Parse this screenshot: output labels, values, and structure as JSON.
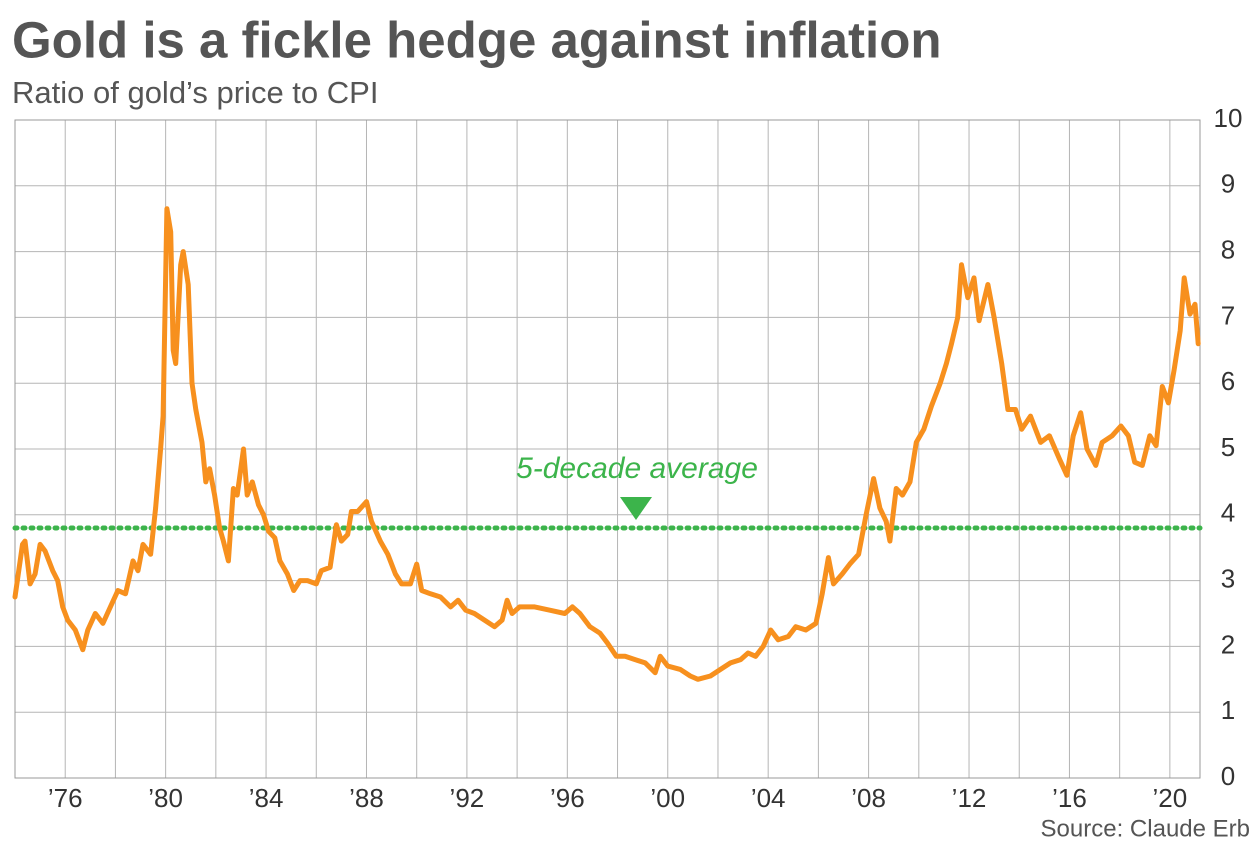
{
  "chart_data": {
    "type": "line",
    "title": "Gold is a fickle hedge against inflation",
    "subtitle": "Ratio of gold’s price to CPI",
    "source": "Source: Claude Erb",
    "color": "#f7901e",
    "x": [
      1974.0,
      1974.3,
      1974.4,
      1974.6,
      1974.8,
      1975.0,
      1975.2,
      1975.5,
      1975.7,
      1975.9,
      1976.1,
      1976.4,
      1976.7,
      1976.9,
      1977.2,
      1977.5,
      1977.8,
      1978.1,
      1978.4,
      1978.7,
      1978.9,
      1979.1,
      1979.4,
      1979.6,
      1979.8,
      1979.9,
      1980.05,
      1980.2,
      1980.3,
      1980.4,
      1980.6,
      1980.7,
      1980.9,
      1981.05,
      1981.2,
      1981.45,
      1981.6,
      1981.75,
      1981.95,
      1982.15,
      1982.3,
      1982.5,
      1982.7,
      1982.85,
      1983.1,
      1983.25,
      1983.45,
      1983.7,
      1983.9,
      1984.1,
      1984.35,
      1984.55,
      1984.85,
      1985.1,
      1985.35,
      1985.65,
      1986.0,
      1986.2,
      1986.55,
      1986.8,
      1987.0,
      1987.25,
      1987.4,
      1987.65,
      1988.0,
      1988.2,
      1988.55,
      1988.85,
      1989.15,
      1989.4,
      1989.75,
      1990.0,
      1990.2,
      1990.55,
      1990.95,
      1991.35,
      1991.65,
      1991.95,
      1992.3,
      1992.7,
      1993.1,
      1993.4,
      1993.6,
      1993.8,
      1994.1,
      1994.7,
      1995.3,
      1995.9,
      1996.2,
      1996.5,
      1996.9,
      1997.3,
      1997.6,
      1997.95,
      1998.3,
      1998.7,
      1999.1,
      1999.5,
      1999.7,
      2000.0,
      2000.5,
      2000.9,
      2001.2,
      2001.7,
      2002.1,
      2002.5,
      2002.9,
      2003.2,
      2003.5,
      2003.8,
      2004.1,
      2004.4,
      2004.8,
      2005.1,
      2005.5,
      2005.9,
      2006.15,
      2006.4,
      2006.6,
      2006.95,
      2007.25,
      2007.6,
      2007.9,
      2008.2,
      2008.45,
      2008.7,
      2008.85,
      2009.1,
      2009.35,
      2009.65,
      2009.9,
      2010.2,
      2010.5,
      2010.85,
      2011.1,
      2011.3,
      2011.55,
      2011.7,
      2011.95,
      2012.2,
      2012.4,
      2012.75,
      2013.0,
      2013.3,
      2013.55,
      2013.85,
      2014.1,
      2014.45,
      2014.85,
      2015.2,
      2015.6,
      2015.9,
      2016.15,
      2016.45,
      2016.7,
      2017.05,
      2017.3,
      2017.7,
      2018.05,
      2018.35,
      2018.6,
      2018.9,
      2019.2,
      2019.45,
      2019.7,
      2019.94,
      2020.17,
      2020.41,
      2020.57,
      2020.8,
      2021.0,
      2021.13
    ],
    "values": [
      2.75,
      3.55,
      3.6,
      2.95,
      3.1,
      3.55,
      3.45,
      3.15,
      3.0,
      2.6,
      2.4,
      2.25,
      1.95,
      2.25,
      2.5,
      2.35,
      2.6,
      2.85,
      2.8,
      3.3,
      3.15,
      3.55,
      3.4,
      4.1,
      5.0,
      5.5,
      8.65,
      8.3,
      6.5,
      6.3,
      7.8,
      8.0,
      7.5,
      6.0,
      5.6,
      5.1,
      4.5,
      4.7,
      4.3,
      3.8,
      3.6,
      3.3,
      4.4,
      4.3,
      5.0,
      4.3,
      4.5,
      4.15,
      4.0,
      3.75,
      3.65,
      3.3,
      3.1,
      2.85,
      3.0,
      3.0,
      2.95,
      3.15,
      3.2,
      3.85,
      3.6,
      3.7,
      4.05,
      4.05,
      4.2,
      3.9,
      3.6,
      3.4,
      3.1,
      2.95,
      2.95,
      3.25,
      2.85,
      2.8,
      2.75,
      2.6,
      2.7,
      2.55,
      2.5,
      2.4,
      2.3,
      2.4,
      2.7,
      2.5,
      2.6,
      2.6,
      2.55,
      2.5,
      2.6,
      2.5,
      2.3,
      2.2,
      2.05,
      1.85,
      1.85,
      1.8,
      1.75,
      1.6,
      1.85,
      1.7,
      1.65,
      1.55,
      1.5,
      1.55,
      1.65,
      1.75,
      1.8,
      1.9,
      1.85,
      2.0,
      2.25,
      2.1,
      2.15,
      2.3,
      2.25,
      2.35,
      2.8,
      3.35,
      2.95,
      3.1,
      3.25,
      3.4,
      4.0,
      4.55,
      4.1,
      3.9,
      3.6,
      4.4,
      4.3,
      4.5,
      5.1,
      5.3,
      5.65,
      6.0,
      6.3,
      6.6,
      7.0,
      7.8,
      7.3,
      7.6,
      6.95,
      7.5,
      7.0,
      6.3,
      5.6,
      5.6,
      5.3,
      5.5,
      5.1,
      5.2,
      4.85,
      4.6,
      5.2,
      5.55,
      5.0,
      4.75,
      5.1,
      5.2,
      5.35,
      5.2,
      4.8,
      4.75,
      5.2,
      5.05,
      5.95,
      5.7,
      6.2,
      6.8,
      7.6,
      7.05,
      7.2,
      6.6
    ],
    "average": {
      "value": 3.8,
      "label": "5-decade average",
      "color": "#3cb44b"
    },
    "xlim": [
      1974,
      2021.2
    ],
    "ylim": [
      0,
      10
    ],
    "xticks": [
      {
        "value": 1976,
        "label": "’76"
      },
      {
        "value": 1980,
        "label": "’80"
      },
      {
        "value": 1984,
        "label": "’84"
      },
      {
        "value": 1988,
        "label": "’88"
      },
      {
        "value": 1992,
        "label": "’92"
      },
      {
        "value": 1996,
        "label": "’96"
      },
      {
        "value": 2000,
        "label": "’00"
      },
      {
        "value": 2004,
        "label": "’04"
      },
      {
        "value": 2008,
        "label": "’08"
      },
      {
        "value": 2012,
        "label": "’12"
      },
      {
        "value": 2016,
        "label": "’16"
      },
      {
        "value": 2020,
        "label": "’20"
      }
    ],
    "xminor_ticks": [
      1978,
      1982,
      1986,
      1990,
      1994,
      1998,
      2002,
      2006,
      2010,
      2014,
      2018
    ],
    "yticks": [
      0,
      1,
      2,
      3,
      4,
      5,
      6,
      7,
      8,
      9,
      10
    ],
    "grid": true
  }
}
